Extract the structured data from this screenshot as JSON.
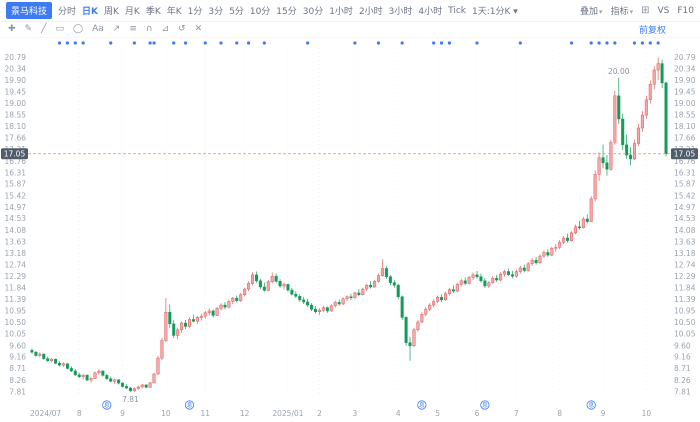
{
  "header": {
    "stock_name": "景马科技",
    "tabs": [
      {
        "label": "分时"
      },
      {
        "label": "日K",
        "active": true
      },
      {
        "label": "周K"
      },
      {
        "label": "月K"
      },
      {
        "label": "季K"
      },
      {
        "label": "年K"
      },
      {
        "label": "1分"
      },
      {
        "label": "3分"
      },
      {
        "label": "5分"
      },
      {
        "label": "10分"
      },
      {
        "label": "15分"
      },
      {
        "label": "30分"
      },
      {
        "label": "1小时"
      },
      {
        "label": "2小时"
      },
      {
        "label": "3小时"
      },
      {
        "label": "4小时"
      },
      {
        "label": "Tick"
      },
      {
        "label": "1天:1分K",
        "caret": true
      }
    ],
    "overlay_label": "叠加",
    "indicator_label": "指标",
    "vs_label": "VS",
    "f10_label": "F10"
  },
  "icons": {
    "caret": "▾",
    "layout": "⊞"
  },
  "drawbar": {
    "tools": [
      {
        "name": "crosshair-tool",
        "glyph": "✚"
      },
      {
        "name": "pencil-tool",
        "glyph": "✎"
      },
      {
        "name": "trendline-tool",
        "glyph": "╱"
      },
      {
        "name": "rectangle-tool",
        "glyph": "▭"
      },
      {
        "name": "circle-tool",
        "glyph": "◯"
      },
      {
        "name": "text-tool",
        "glyph": "Aa"
      },
      {
        "name": "arrow-tool",
        "glyph": "↗"
      },
      {
        "name": "fibonacci-tool",
        "glyph": "≡"
      },
      {
        "name": "magnet-tool",
        "glyph": "∩"
      },
      {
        "name": "measure-tool",
        "glyph": "⊿"
      },
      {
        "name": "undo-tool",
        "glyph": "↺"
      },
      {
        "name": "delete-tool",
        "glyph": "✕"
      }
    ]
  },
  "colors": {
    "accent": "#3c7bf4",
    "up": "#e05c5c",
    "up_fill": "#f4a9a9",
    "down": "#149b5c",
    "price_line": "#ff8f1f",
    "tag_bg": "#515c6b",
    "grid": "#eef0f4",
    "axis_text": "#9aa3af"
  },
  "chart": {
    "adjust_label": "前复权",
    "price_line": {
      "value": "17.05"
    },
    "event_dot_idx": [
      7,
      9,
      11,
      13,
      20,
      26,
      30,
      31,
      36,
      39,
      44,
      48,
      52,
      55,
      59,
      70,
      82,
      88,
      94,
      102,
      104,
      106,
      113,
      124,
      137,
      142,
      144,
      146,
      148,
      153,
      155,
      157,
      159
    ],
    "dividend_marker_idx": [
      19,
      40,
      99,
      115,
      142
    ],
    "dividend_glyph": "息",
    "annotations": [
      {
        "text": "20.00",
        "idx": 149,
        "price": 20.0,
        "pos": "above"
      },
      {
        "text": "7.81",
        "idx": 25,
        "price": 7.81,
        "pos": "below"
      }
    ]
  },
  "chart_data": {
    "type": "candlestick",
    "symbol_label": "景马科技",
    "period": "日K",
    "adjust": "前复权",
    "last_price": 17.05,
    "ylim": [
      7.65,
      21.0
    ],
    "y_ticks": [
      "20.79",
      "20.34",
      "19.90",
      "19.45",
      "19.00",
      "18.55",
      "18.10",
      "17.66",
      "17.21",
      "16.76",
      "16.31",
      "15.87",
      "15.42",
      "14.97",
      "14.53",
      "14.08",
      "13.63",
      "13.18",
      "12.74",
      "12.29",
      "11.84",
      "11.39",
      "10.95",
      "10.50",
      "10.05",
      "9.60",
      "9.16",
      "8.71",
      "8.26",
      "7.81"
    ],
    "x_months": [
      "2024/07",
      "8",
      "9",
      "10",
      "11",
      "12",
      "2025/01",
      "2",
      "3",
      "4",
      "5",
      "6",
      "7",
      "8",
      "9",
      "10"
    ],
    "month_start_idx": [
      0,
      12,
      23,
      34,
      44,
      54,
      65,
      73,
      82,
      93,
      103,
      113,
      123,
      134,
      145,
      156
    ],
    "candles": [
      [
        9.42,
        9.5,
        9.3,
        9.35
      ],
      [
        9.35,
        9.4,
        9.18,
        9.22
      ],
      [
        9.22,
        9.33,
        9.15,
        9.28
      ],
      [
        9.28,
        9.3,
        9.05,
        9.1
      ],
      [
        9.1,
        9.18,
        8.98,
        9.02
      ],
      [
        9.02,
        9.12,
        8.95,
        9.08
      ],
      [
        9.08,
        9.1,
        8.88,
        8.92
      ],
      [
        8.92,
        9.0,
        8.8,
        8.85
      ],
      [
        8.85,
        8.95,
        8.78,
        8.9
      ],
      [
        8.9,
        8.92,
        8.68,
        8.72
      ],
      [
        8.72,
        8.8,
        8.58,
        8.62
      ],
      [
        8.62,
        8.7,
        8.42,
        8.47
      ],
      [
        8.47,
        8.55,
        8.35,
        8.4
      ],
      [
        8.4,
        8.5,
        8.3,
        8.46
      ],
      [
        8.46,
        8.48,
        8.22,
        8.27
      ],
      [
        8.27,
        8.38,
        8.18,
        8.33
      ],
      [
        8.33,
        8.6,
        8.3,
        8.55
      ],
      [
        8.55,
        8.68,
        8.48,
        8.62
      ],
      [
        8.62,
        8.65,
        8.4,
        8.45
      ],
      [
        8.45,
        8.52,
        8.28,
        8.32
      ],
      [
        8.32,
        8.4,
        8.18,
        8.22
      ],
      [
        8.22,
        8.32,
        8.12,
        8.28
      ],
      [
        8.28,
        8.3,
        8.1,
        8.15
      ],
      [
        8.15,
        8.18,
        7.98,
        8.02
      ],
      [
        8.02,
        8.1,
        7.92,
        7.96
      ],
      [
        7.96,
        8.0,
        7.81,
        7.85
      ],
      [
        7.85,
        7.98,
        7.82,
        7.94
      ],
      [
        7.94,
        8.05,
        7.9,
        8.0
      ],
      [
        8.0,
        8.12,
        7.95,
        8.08
      ],
      [
        8.08,
        8.1,
        7.95,
        7.99
      ],
      [
        7.99,
        8.2,
        7.97,
        8.16
      ],
      [
        8.16,
        8.55,
        8.14,
        8.5
      ],
      [
        8.5,
        9.2,
        8.48,
        9.12
      ],
      [
        9.12,
        9.9,
        9.05,
        9.8
      ],
      [
        9.8,
        11.45,
        9.75,
        10.9
      ],
      [
        10.9,
        11.2,
        10.3,
        10.45
      ],
      [
        10.45,
        10.6,
        9.9,
        10.0
      ],
      [
        10.0,
        10.3,
        9.85,
        10.22
      ],
      [
        10.22,
        10.55,
        10.1,
        10.48
      ],
      [
        10.48,
        10.6,
        10.25,
        10.35
      ],
      [
        10.35,
        10.7,
        10.3,
        10.62
      ],
      [
        10.62,
        10.8,
        10.5,
        10.55
      ],
      [
        10.55,
        10.75,
        10.45,
        10.7
      ],
      [
        10.7,
        10.85,
        10.58,
        10.75
      ],
      [
        10.75,
        10.95,
        10.65,
        10.88
      ],
      [
        10.88,
        11.05,
        10.78,
        10.95
      ],
      [
        10.95,
        11.0,
        10.7,
        10.78
      ],
      [
        10.78,
        11.1,
        10.75,
        11.05
      ],
      [
        11.05,
        11.25,
        10.98,
        11.18
      ],
      [
        11.18,
        11.3,
        11.02,
        11.1
      ],
      [
        11.1,
        11.4,
        11.05,
        11.32
      ],
      [
        11.32,
        11.5,
        11.22,
        11.45
      ],
      [
        11.45,
        11.55,
        11.28,
        11.35
      ],
      [
        11.35,
        11.65,
        11.3,
        11.58
      ],
      [
        11.58,
        11.85,
        11.52,
        11.8
      ],
      [
        11.8,
        12.1,
        11.72,
        12.02
      ],
      [
        12.02,
        12.45,
        11.95,
        12.35
      ],
      [
        12.35,
        12.48,
        12.05,
        12.12
      ],
      [
        12.12,
        12.2,
        11.8,
        11.88
      ],
      [
        11.88,
        12.05,
        11.7,
        11.75
      ],
      [
        11.75,
        12.15,
        11.72,
        12.08
      ],
      [
        12.08,
        12.45,
        12.02,
        12.3
      ],
      [
        12.3,
        12.4,
        12.05,
        12.1
      ],
      [
        12.1,
        12.18,
        11.85,
        11.92
      ],
      [
        11.92,
        12.05,
        11.78,
        11.98
      ],
      [
        11.98,
        12.0,
        11.7,
        11.76
      ],
      [
        11.76,
        11.85,
        11.55,
        11.6
      ],
      [
        11.6,
        11.72,
        11.45,
        11.52
      ],
      [
        11.52,
        11.6,
        11.3,
        11.38
      ],
      [
        11.38,
        11.5,
        11.22,
        11.3
      ],
      [
        11.3,
        11.42,
        11.1,
        11.18
      ],
      [
        11.18,
        11.25,
        10.95,
        11.02
      ],
      [
        11.02,
        11.15,
        10.85,
        10.92
      ],
      [
        10.92,
        11.05,
        10.8,
        10.98
      ],
      [
        10.98,
        11.15,
        10.9,
        11.08
      ],
      [
        11.08,
        11.12,
        10.88,
        10.95
      ],
      [
        10.95,
        11.2,
        10.92,
        11.15
      ],
      [
        11.15,
        11.35,
        11.08,
        11.28
      ],
      [
        11.28,
        11.4,
        11.15,
        11.22
      ],
      [
        11.22,
        11.48,
        11.18,
        11.42
      ],
      [
        11.42,
        11.55,
        11.32,
        11.5
      ],
      [
        11.5,
        11.62,
        11.38,
        11.46
      ],
      [
        11.46,
        11.7,
        11.42,
        11.65
      ],
      [
        11.65,
        11.8,
        11.52,
        11.58
      ],
      [
        11.58,
        11.85,
        11.55,
        11.8
      ],
      [
        11.8,
        12.0,
        11.72,
        11.95
      ],
      [
        11.95,
        12.1,
        11.82,
        11.88
      ],
      [
        11.88,
        12.15,
        11.85,
        12.1
      ],
      [
        12.1,
        12.4,
        12.05,
        12.32
      ],
      [
        12.32,
        12.95,
        12.28,
        12.6
      ],
      [
        12.6,
        12.7,
        12.2,
        12.28
      ],
      [
        12.28,
        12.35,
        11.95,
        12.05
      ],
      [
        12.05,
        12.15,
        11.85,
        11.95
      ],
      [
        11.95,
        12.0,
        11.4,
        11.5
      ],
      [
        11.5,
        11.55,
        10.6,
        10.7
      ],
      [
        10.7,
        10.75,
        9.6,
        9.72
      ],
      [
        9.72,
        9.95,
        9.02,
        9.6
      ],
      [
        9.6,
        10.3,
        9.55,
        10.22
      ],
      [
        10.22,
        10.6,
        10.15,
        10.52
      ],
      [
        10.52,
        10.9,
        10.48,
        10.82
      ],
      [
        10.82,
        11.1,
        10.75,
        11.02
      ],
      [
        11.02,
        11.25,
        10.95,
        11.18
      ],
      [
        11.18,
        11.4,
        11.1,
        11.32
      ],
      [
        11.32,
        11.55,
        11.25,
        11.48
      ],
      [
        11.48,
        11.6,
        11.3,
        11.38
      ],
      [
        11.38,
        11.7,
        11.35,
        11.62
      ],
      [
        11.62,
        11.85,
        11.55,
        11.78
      ],
      [
        11.78,
        11.95,
        11.65,
        11.72
      ],
      [
        11.72,
        12.05,
        11.68,
        11.98
      ],
      [
        11.98,
        12.2,
        11.9,
        12.12
      ],
      [
        12.12,
        12.25,
        11.95,
        12.02
      ],
      [
        12.02,
        12.3,
        11.98,
        12.25
      ],
      [
        12.25,
        12.45,
        12.15,
        12.35
      ],
      [
        12.35,
        12.5,
        12.2,
        12.28
      ],
      [
        12.28,
        12.4,
        12.05,
        12.12
      ],
      [
        12.12,
        12.22,
        11.85,
        11.92
      ],
      [
        11.92,
        12.1,
        11.85,
        12.05
      ],
      [
        12.05,
        12.3,
        12.0,
        12.22
      ],
      [
        12.22,
        12.35,
        12.08,
        12.15
      ],
      [
        12.15,
        12.45,
        12.1,
        12.38
      ],
      [
        12.38,
        12.55,
        12.28,
        12.48
      ],
      [
        12.48,
        12.6,
        12.3,
        12.36
      ],
      [
        12.36,
        12.5,
        12.22,
        12.3
      ],
      [
        12.3,
        12.55,
        12.25,
        12.48
      ],
      [
        12.48,
        12.7,
        12.4,
        12.62
      ],
      [
        12.62,
        12.75,
        12.45,
        12.52
      ],
      [
        12.52,
        12.85,
        12.48,
        12.78
      ],
      [
        12.78,
        13.0,
        12.7,
        12.92
      ],
      [
        12.92,
        13.05,
        12.75,
        12.82
      ],
      [
        12.82,
        13.15,
        12.78,
        13.08
      ],
      [
        13.08,
        13.3,
        13.0,
        13.22
      ],
      [
        13.22,
        13.35,
        13.05,
        13.12
      ],
      [
        13.12,
        13.45,
        13.08,
        13.38
      ],
      [
        13.38,
        13.55,
        13.25,
        13.42
      ],
      [
        13.42,
        13.7,
        13.35,
        13.62
      ],
      [
        13.62,
        13.85,
        13.55,
        13.78
      ],
      [
        13.78,
        13.95,
        13.6,
        13.68
      ],
      [
        13.68,
        14.05,
        13.65,
        13.98
      ],
      [
        13.98,
        14.3,
        13.92,
        14.22
      ],
      [
        14.22,
        14.45,
        14.1,
        14.18
      ],
      [
        14.18,
        14.6,
        14.15,
        14.52
      ],
      [
        14.52,
        14.7,
        14.35,
        14.42
      ],
      [
        14.42,
        15.4,
        14.4,
        15.3
      ],
      [
        15.3,
        16.4,
        15.2,
        16.25
      ],
      [
        16.25,
        17.1,
        16.0,
        16.9
      ],
      [
        16.9,
        17.4,
        16.5,
        16.7
      ],
      [
        16.7,
        17.0,
        16.2,
        16.45
      ],
      [
        16.45,
        17.6,
        16.4,
        17.5
      ],
      [
        17.5,
        19.5,
        17.4,
        19.3
      ],
      [
        19.3,
        20.0,
        18.2,
        18.4
      ],
      [
        18.4,
        18.6,
        17.2,
        17.4
      ],
      [
        17.4,
        17.8,
        16.85,
        17.0
      ],
      [
        17.0,
        17.3,
        16.6,
        16.85
      ],
      [
        16.85,
        17.6,
        16.8,
        17.45
      ],
      [
        17.45,
        18.2,
        17.35,
        18.05
      ],
      [
        18.05,
        18.7,
        17.9,
        18.55
      ],
      [
        18.55,
        19.3,
        18.4,
        19.15
      ],
      [
        19.15,
        19.9,
        19.0,
        19.75
      ],
      [
        19.75,
        20.45,
        19.55,
        20.3
      ],
      [
        20.3,
        20.79,
        19.9,
        20.55
      ],
      [
        20.55,
        20.7,
        19.6,
        19.8
      ],
      [
        19.8,
        19.85,
        16.95,
        17.05
      ]
    ]
  }
}
